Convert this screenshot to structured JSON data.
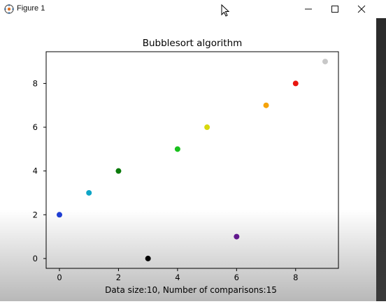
{
  "window": {
    "title": "Figure 1"
  },
  "chart_data": {
    "type": "scatter",
    "title": "Bubblesort algorithm",
    "xlabel": "Data size:10, Number of comparisons:15",
    "ylabel": "",
    "xlim": [
      -0.45,
      9.45
    ],
    "ylim": [
      -0.45,
      9.45
    ],
    "xticks": [
      0,
      2,
      4,
      6,
      8
    ],
    "yticks": [
      0,
      2,
      4,
      6,
      8
    ],
    "grid": false,
    "points": [
      {
        "x": 0,
        "y": 2,
        "color": "#1f3fd6"
      },
      {
        "x": 1,
        "y": 3,
        "color": "#0ea5c6"
      },
      {
        "x": 2,
        "y": 4,
        "color": "#0a7a0a"
      },
      {
        "x": 3,
        "y": 0,
        "color": "#000000"
      },
      {
        "x": 4,
        "y": 5,
        "color": "#19c01d"
      },
      {
        "x": 5,
        "y": 6,
        "color": "#d8d80c"
      },
      {
        "x": 6,
        "y": 1,
        "color": "#6a1b9a"
      },
      {
        "x": 7,
        "y": 7,
        "color": "#f5a30a"
      },
      {
        "x": 8,
        "y": 8,
        "color": "#e8150f"
      },
      {
        "x": 9,
        "y": 9,
        "color": "#c8c8c8"
      }
    ]
  }
}
